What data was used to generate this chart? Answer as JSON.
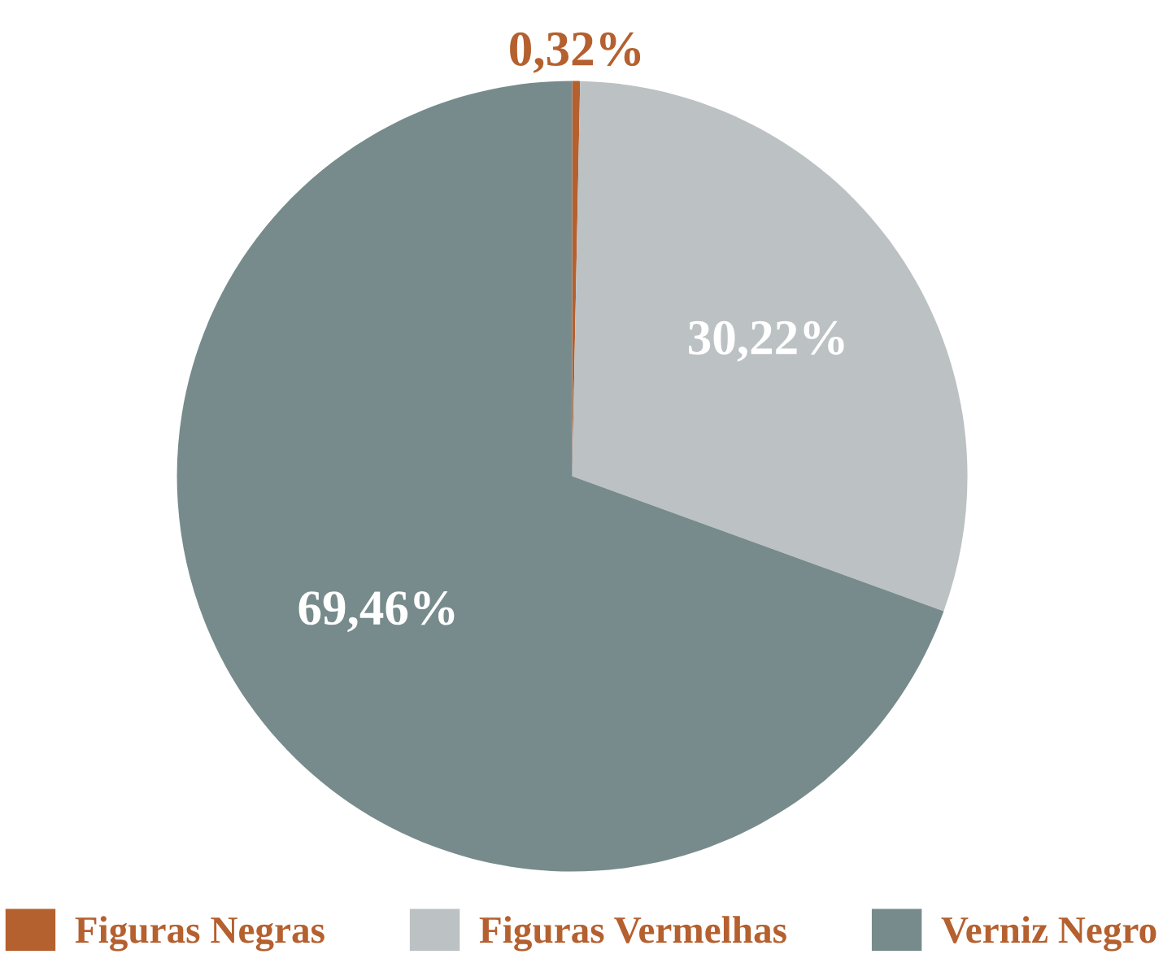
{
  "chart_data": {
    "type": "pie",
    "categories": [
      "Figuras Negras",
      "Figuras Vermelhas",
      "Verniz Negro"
    ],
    "values": [
      0.32,
      30.22,
      69.46
    ],
    "colors": [
      "#b5602f",
      "#bcc1c4",
      "#778b8c"
    ],
    "value_labels": [
      "0,32%",
      "30,22%",
      "69,46%"
    ],
    "legend": "bottom"
  }
}
